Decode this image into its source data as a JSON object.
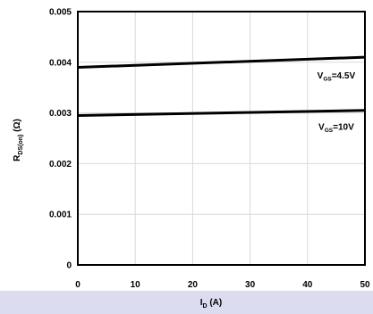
{
  "chart_data": {
    "type": "line",
    "x": [
      0,
      50
    ],
    "series": [
      {
        "name": "V_GS=4.5V",
        "values": [
          0.0039,
          0.0041
        ]
      },
      {
        "name": "V_GS=10V",
        "values": [
          0.00295,
          0.00305
        ]
      }
    ],
    "xlim": [
      0,
      50
    ],
    "ylim": [
      0,
      0.005
    ],
    "x_ticks": [
      "0",
      "10",
      "20",
      "30",
      "40",
      "50"
    ],
    "y_ticks": [
      "0",
      "0.001",
      "0.002",
      "0.003",
      "0.004",
      "0.005"
    ],
    "grid": true,
    "xlabel": {
      "main": "I",
      "sub": "D",
      "unit": " (A)"
    },
    "ylabel": {
      "main": "R",
      "sub": "DS(on)",
      "unit": " (Ω)"
    },
    "labels": [
      {
        "main": "V",
        "sub": "GS",
        "rest": "=4.5V",
        "x": 45,
        "y": 0.00368
      },
      {
        "main": "V",
        "sub": "GS",
        "rest": "=10V",
        "x": 45,
        "y": 0.00267
      }
    ]
  }
}
